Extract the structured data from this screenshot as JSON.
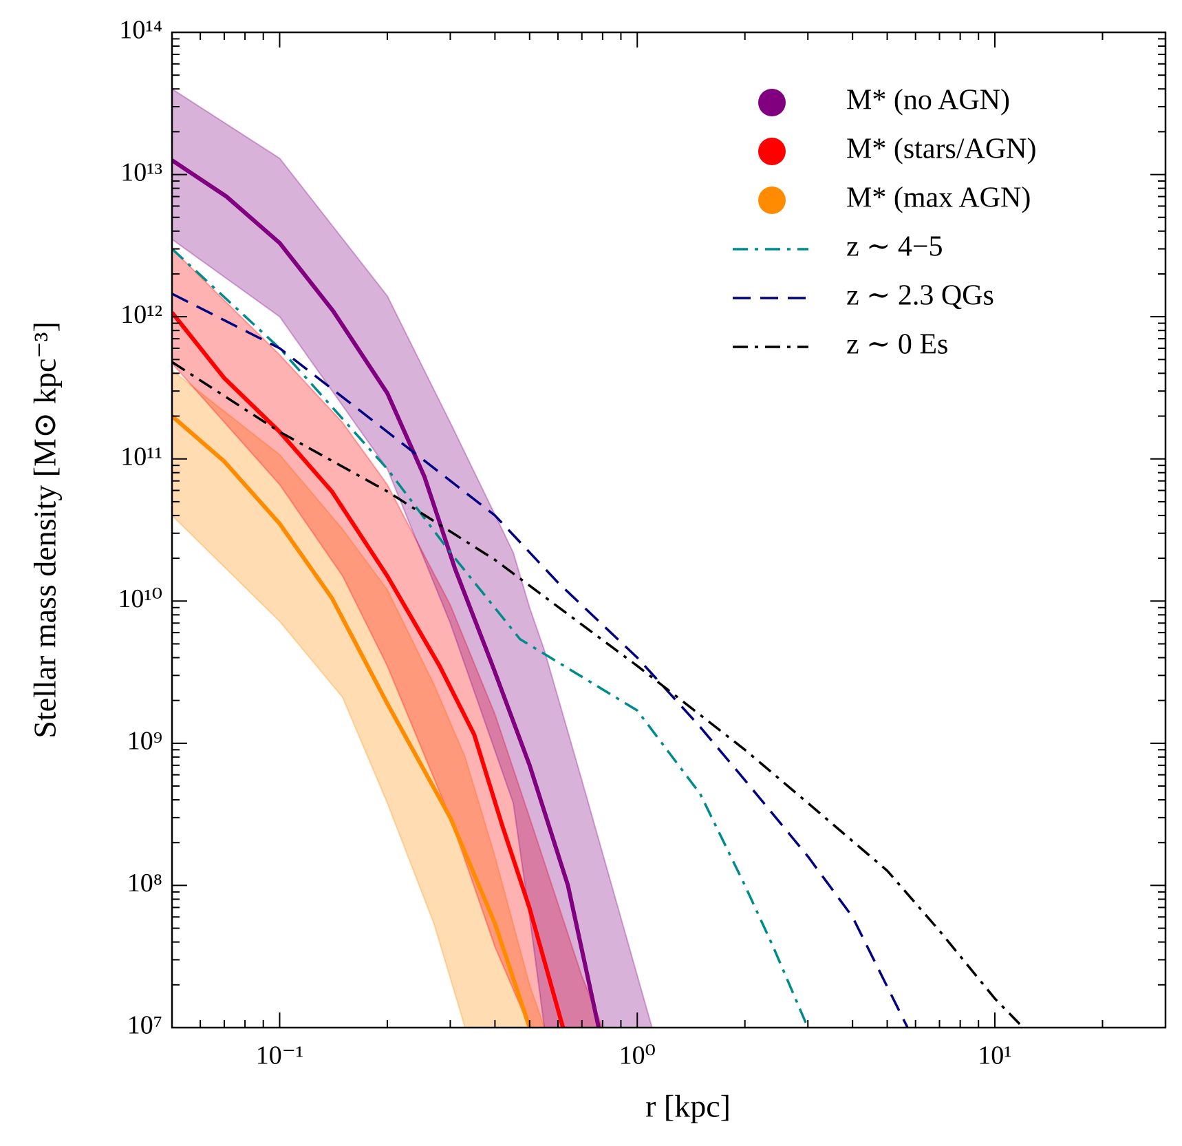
{
  "chart_data": {
    "type": "line",
    "xlabel": "r [kpc]",
    "ylabel": "Stellar mass density [M⊙ kpc⁻³]",
    "xscale": "log",
    "yscale": "log",
    "xlim": [
      0.05,
      30
    ],
    "ylim": [
      10000000.0,
      100000000000000.0
    ],
    "xticks": [
      {
        "value": 0.1,
        "label": "10⁻¹"
      },
      {
        "value": 1,
        "label": "10⁰"
      },
      {
        "value": 10,
        "label": "10¹"
      }
    ],
    "yticks": [
      {
        "value": 10000000.0,
        "label": "10⁷"
      },
      {
        "value": 100000000.0,
        "label": "10⁸"
      },
      {
        "value": 1000000000.0,
        "label": "10⁹"
      },
      {
        "value": 10000000000.0,
        "label": "10¹⁰"
      },
      {
        "value": 100000000000.0,
        "label": "10¹¹"
      },
      {
        "value": 1000000000000.0,
        "label": "10¹²"
      },
      {
        "value": 10000000000000.0,
        "label": "10¹³"
      },
      {
        "value": 100000000000000.0,
        "label": "10¹⁴"
      }
    ],
    "legend": "upper right",
    "series": [
      {
        "name": "M* (no AGN)",
        "color": "#800080",
        "style": "solid",
        "legend_marker": "circle",
        "x": [
          0.05,
          0.071,
          0.1,
          0.141,
          0.2,
          0.254,
          0.309,
          0.394,
          0.5,
          0.64,
          0.78
        ],
        "values": [
          12600000000000.0,
          7000000000000.0,
          3300000000000.0,
          1100000000000.0,
          290000000000.0,
          75000000000.0,
          17000000000.0,
          3500000000.0,
          700000000.0,
          100000000.0,
          10000000.0
        ],
        "band": {
          "x": [
            0.05,
            0.1,
            0.2,
            0.3,
            0.45,
            0.5,
            0.55,
            0.7,
            1.1
          ],
          "lower": [
            3500000000000.0,
            1000000000000.0,
            85000000000.0,
            7000000000.0,
            380000000.0,
            60000000.0,
            10000000.0,
            10000000.0,
            10000000.0
          ],
          "upper": [
            40000000000000.0,
            13000000000000.0,
            1400000000000.0,
            180000000000.0,
            22000000000.0,
            9000000000.0,
            4500000000.0,
            550000000.0,
            10000000.0
          ]
        }
      },
      {
        "name": "M* (stars/AGN)",
        "color": "#ff0000",
        "style": "solid",
        "legend_marker": "circle",
        "x": [
          0.05,
          0.07,
          0.1,
          0.14,
          0.2,
          0.28,
          0.35,
          0.42,
          0.5,
          0.62
        ],
        "values": [
          1070000000000.0,
          370000000000.0,
          155000000000.0,
          59000000000.0,
          15000000000.0,
          3500000000.0,
          1150000000.0,
          260000000.0,
          69000000.0,
          10000000.0
        ],
        "band": {
          "x": [
            0.05,
            0.1,
            0.15,
            0.2,
            0.3,
            0.4,
            0.5,
            0.7,
            0.8
          ],
          "lower": [
            470000000000.0,
            66000000000.0,
            15000000000.0,
            3500000000.0,
            300000000.0,
            37000000.0,
            10000000.0,
            10000000.0,
            10000000.0
          ],
          "upper": [
            3000000000000.0,
            540000000000.0,
            180000000000.0,
            66000000000.0,
            9400000000.0,
            1600000000.0,
            300000000.0,
            23000000.0,
            10000000.0
          ]
        }
      },
      {
        "name": "M* (max AGN)",
        "color": "#ff8c00",
        "style": "solid",
        "legend_marker": "circle",
        "x": [
          0.05,
          0.07,
          0.1,
          0.14,
          0.2,
          0.3,
          0.4,
          0.5
        ],
        "values": [
          200000000000.0,
          96000000000.0,
          35000000000.0,
          10500000000.0,
          1900000000.0,
          300000000.0,
          54000000.0,
          10000000.0
        ],
        "band": {
          "x": [
            0.05,
            0.1,
            0.15,
            0.2,
            0.27,
            0.33,
            0.4,
            0.5,
            0.55
          ],
          "lower": [
            40000000000.0,
            7200000000.0,
            2100000000.0,
            380000000.0,
            54000000.0,
            10000000.0,
            10000000.0,
            10000000.0,
            10000000.0
          ],
          "upper": [
            420000000000.0,
            107000000000.0,
            32000000000.0,
            12000000000.0,
            2600000000.0,
            800000000.0,
            160000000.0,
            20000000.0,
            10000000.0
          ]
        }
      },
      {
        "name": "z ∼ 4−5",
        "color": "#008b8b",
        "style": "dashdot",
        "legend_marker": "line",
        "x": [
          0.05,
          0.1,
          0.2,
          0.3,
          0.47,
          1.0,
          1.5,
          2.0,
          2.4,
          3.0
        ],
        "values": [
          3000000000000.0,
          600000000000.0,
          85000000000.0,
          22000000000.0,
          5400000000.0,
          1700000000.0,
          440000000.0,
          100000000.0,
          37000000.0,
          10000000.0
        ]
      },
      {
        "name": "z ∼ 2.3 QGs",
        "color": "#000080",
        "style": "dashed",
        "legend_marker": "line",
        "x": [
          0.05,
          0.1,
          0.2,
          0.4,
          0.6,
          1.0,
          1.5,
          2.0,
          3.0,
          4.0,
          5.7
        ],
        "values": [
          1450000000000.0,
          600000000000.0,
          155000000000.0,
          40000000000.0,
          13500000000.0,
          4000000000.0,
          1300000000.0,
          550000000.0,
          160000000.0,
          60000000.0,
          10000000.0
        ]
      },
      {
        "name": "z ∼ 0 Es",
        "color": "#000000",
        "style": "dashdot",
        "legend_marker": "line",
        "x": [
          0.05,
          0.1,
          0.2,
          0.4,
          1.0,
          2.0,
          3.0,
          5.0,
          7.0,
          10,
          12
        ],
        "values": [
          480000000000.0,
          155000000000.0,
          59000000000.0,
          19500000000.0,
          3500000000.0,
          900000000.0,
          380000000.0,
          127000000.0,
          48000000.0,
          16000000.0,
          10000000.0
        ]
      }
    ]
  }
}
